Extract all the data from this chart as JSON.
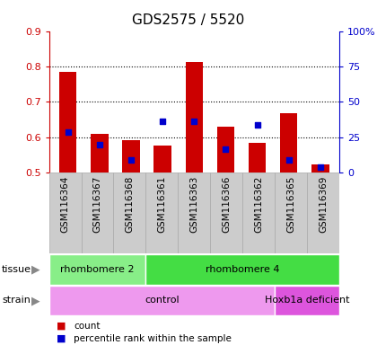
{
  "title": "GDS2575 / 5520",
  "samples": [
    "GSM116364",
    "GSM116367",
    "GSM116368",
    "GSM116361",
    "GSM116363",
    "GSM116366",
    "GSM116362",
    "GSM116365",
    "GSM116369"
  ],
  "count_values": [
    0.785,
    0.61,
    0.592,
    0.577,
    0.812,
    0.63,
    0.585,
    0.668,
    0.522
  ],
  "percentile_values": [
    0.615,
    0.578,
    0.535,
    0.645,
    0.645,
    0.565,
    0.635,
    0.535,
    0.515
  ],
  "bar_bottom": 0.5,
  "ylim": [
    0.5,
    0.9
  ],
  "yticks_left": [
    0.5,
    0.6,
    0.7,
    0.8,
    0.9
  ],
  "yticks_right": [
    0,
    25,
    50,
    75,
    100
  ],
  "ytick_labels_right": [
    "0",
    "25",
    "50",
    "75",
    "100%"
  ],
  "bar_color": "#cc0000",
  "dot_color": "#0000cc",
  "tissue_groups": [
    {
      "label": "rhombomere 2",
      "start": 0,
      "end": 3,
      "color": "#88ee88"
    },
    {
      "label": "rhombomere 4",
      "start": 3,
      "end": 9,
      "color": "#44dd44"
    }
  ],
  "strain_groups": [
    {
      "label": "control",
      "start": 0,
      "end": 7,
      "color": "#ee99ee"
    },
    {
      "label": "Hoxb1a deficient",
      "start": 7,
      "end": 9,
      "color": "#dd55dd"
    }
  ],
  "legend_items": [
    {
      "label": "count",
      "color": "#cc0000"
    },
    {
      "label": "percentile rank within the sample",
      "color": "#0000cc"
    }
  ],
  "title_color": "#000000",
  "left_tick_color": "#cc0000",
  "right_tick_color": "#0000cc",
  "label_box_color": "#cccccc",
  "label_box_border": "#aaaaaa",
  "arrow_color": "#888888"
}
